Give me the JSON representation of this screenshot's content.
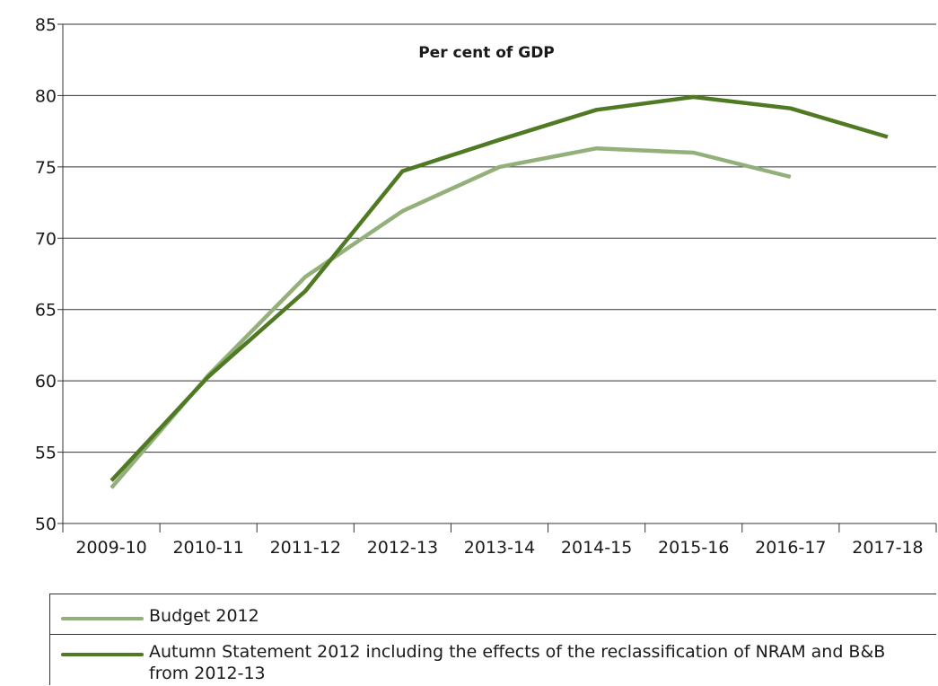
{
  "chart_data": {
    "type": "line",
    "title": "Per cent of GDP",
    "categories": [
      "2009-10",
      "2010-11",
      "2011-12",
      "2012-13",
      "2013-14",
      "2014-15",
      "2015-16",
      "2016-17",
      "2017-18"
    ],
    "ylim": [
      50,
      85
    ],
    "yticks": [
      50,
      55,
      60,
      65,
      70,
      75,
      80,
      85
    ],
    "grid": true,
    "legend_position": "bottom",
    "series": [
      {
        "name": "Budget 2012",
        "color": "#93b07a",
        "values": [
          52.5,
          60.4,
          67.3,
          71.9,
          75.0,
          76.3,
          76.0,
          74.3,
          null
        ]
      },
      {
        "name": "Autumn Statement 2012 including the effects of the reclassification of NRAM and B&B from 2012-13",
        "color": "#4f7a23",
        "values": [
          53.0,
          60.3,
          66.3,
          74.7,
          76.9,
          79.0,
          79.9,
          79.1,
          77.1
        ]
      }
    ]
  },
  "legend": {
    "items": [
      {
        "label": "Budget 2012"
      },
      {
        "label": "Autumn Statement 2012 including the effects of the reclassification of NRAM and B&B from 2012-13"
      }
    ]
  }
}
